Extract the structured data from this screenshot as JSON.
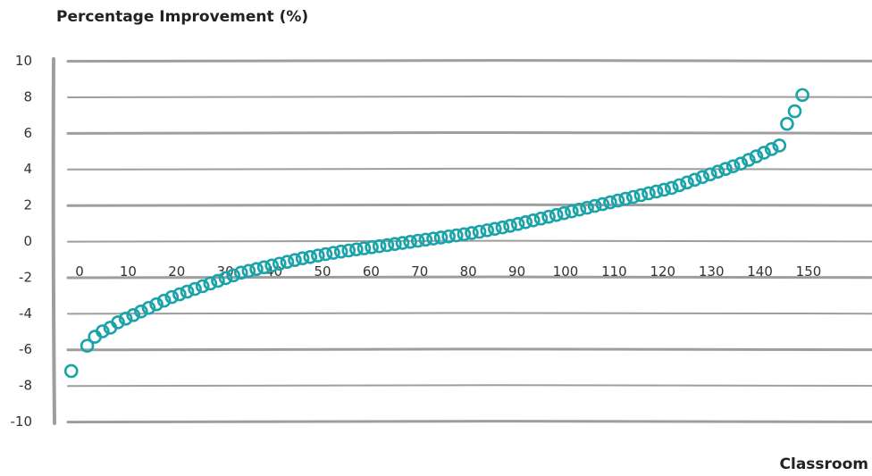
{
  "chart_data": {
    "type": "scatter",
    "title": "",
    "ylabel": "Percentage Improvement (%)",
    "xlabel": "Classroom",
    "xlim": [
      0,
      151
    ],
    "ylim": [
      -10,
      10
    ],
    "x_ticks": [
      "0",
      "10",
      "20",
      "30",
      "40",
      "50",
      "60",
      "70",
      "80",
      "90",
      "100",
      "110",
      "120",
      "130",
      "140",
      "150"
    ],
    "y_ticks": [
      "10",
      "8",
      "6",
      "4",
      "2",
      "0",
      "-2",
      "-4",
      "-6",
      "-8",
      "-10"
    ],
    "grid": true,
    "marker": "open-circle",
    "marker_color": "#1aa3a8",
    "grid_color": "#9e9e9e",
    "series": [
      {
        "values": [
          -7.2,
          -5.8,
          -5.3,
          -5.0,
          -4.8,
          -4.5,
          -4.3,
          -4.1,
          -3.9,
          -3.7,
          -3.5,
          -3.3,
          -3.1,
          -2.95,
          -2.8,
          -2.65,
          -2.5,
          -2.35,
          -2.2,
          -2.05,
          -1.9,
          -1.75,
          -1.65,
          -1.55,
          -1.45,
          -1.35,
          -1.25,
          -1.15,
          -1.05,
          -0.95,
          -0.88,
          -0.8,
          -0.72,
          -0.65,
          -0.58,
          -0.52,
          -0.46,
          -0.4,
          -0.34,
          -0.28,
          -0.22,
          -0.16,
          -0.1,
          -0.04,
          0.02,
          0.08,
          0.14,
          0.2,
          0.26,
          0.32,
          0.38,
          0.45,
          0.52,
          0.6,
          0.68,
          0.76,
          0.85,
          0.95,
          1.05,
          1.15,
          1.25,
          1.35,
          1.45,
          1.55,
          1.65,
          1.75,
          1.85,
          1.95,
          2.05,
          2.15,
          2.25,
          2.35,
          2.45,
          2.55,
          2.65,
          2.75,
          2.85,
          2.95,
          3.1,
          3.25,
          3.4,
          3.55,
          3.7,
          3.85,
          4.0,
          4.15,
          4.3,
          4.5,
          4.7,
          4.9,
          5.1,
          5.3,
          6.5,
          7.2,
          8.1
        ]
      }
    ]
  }
}
